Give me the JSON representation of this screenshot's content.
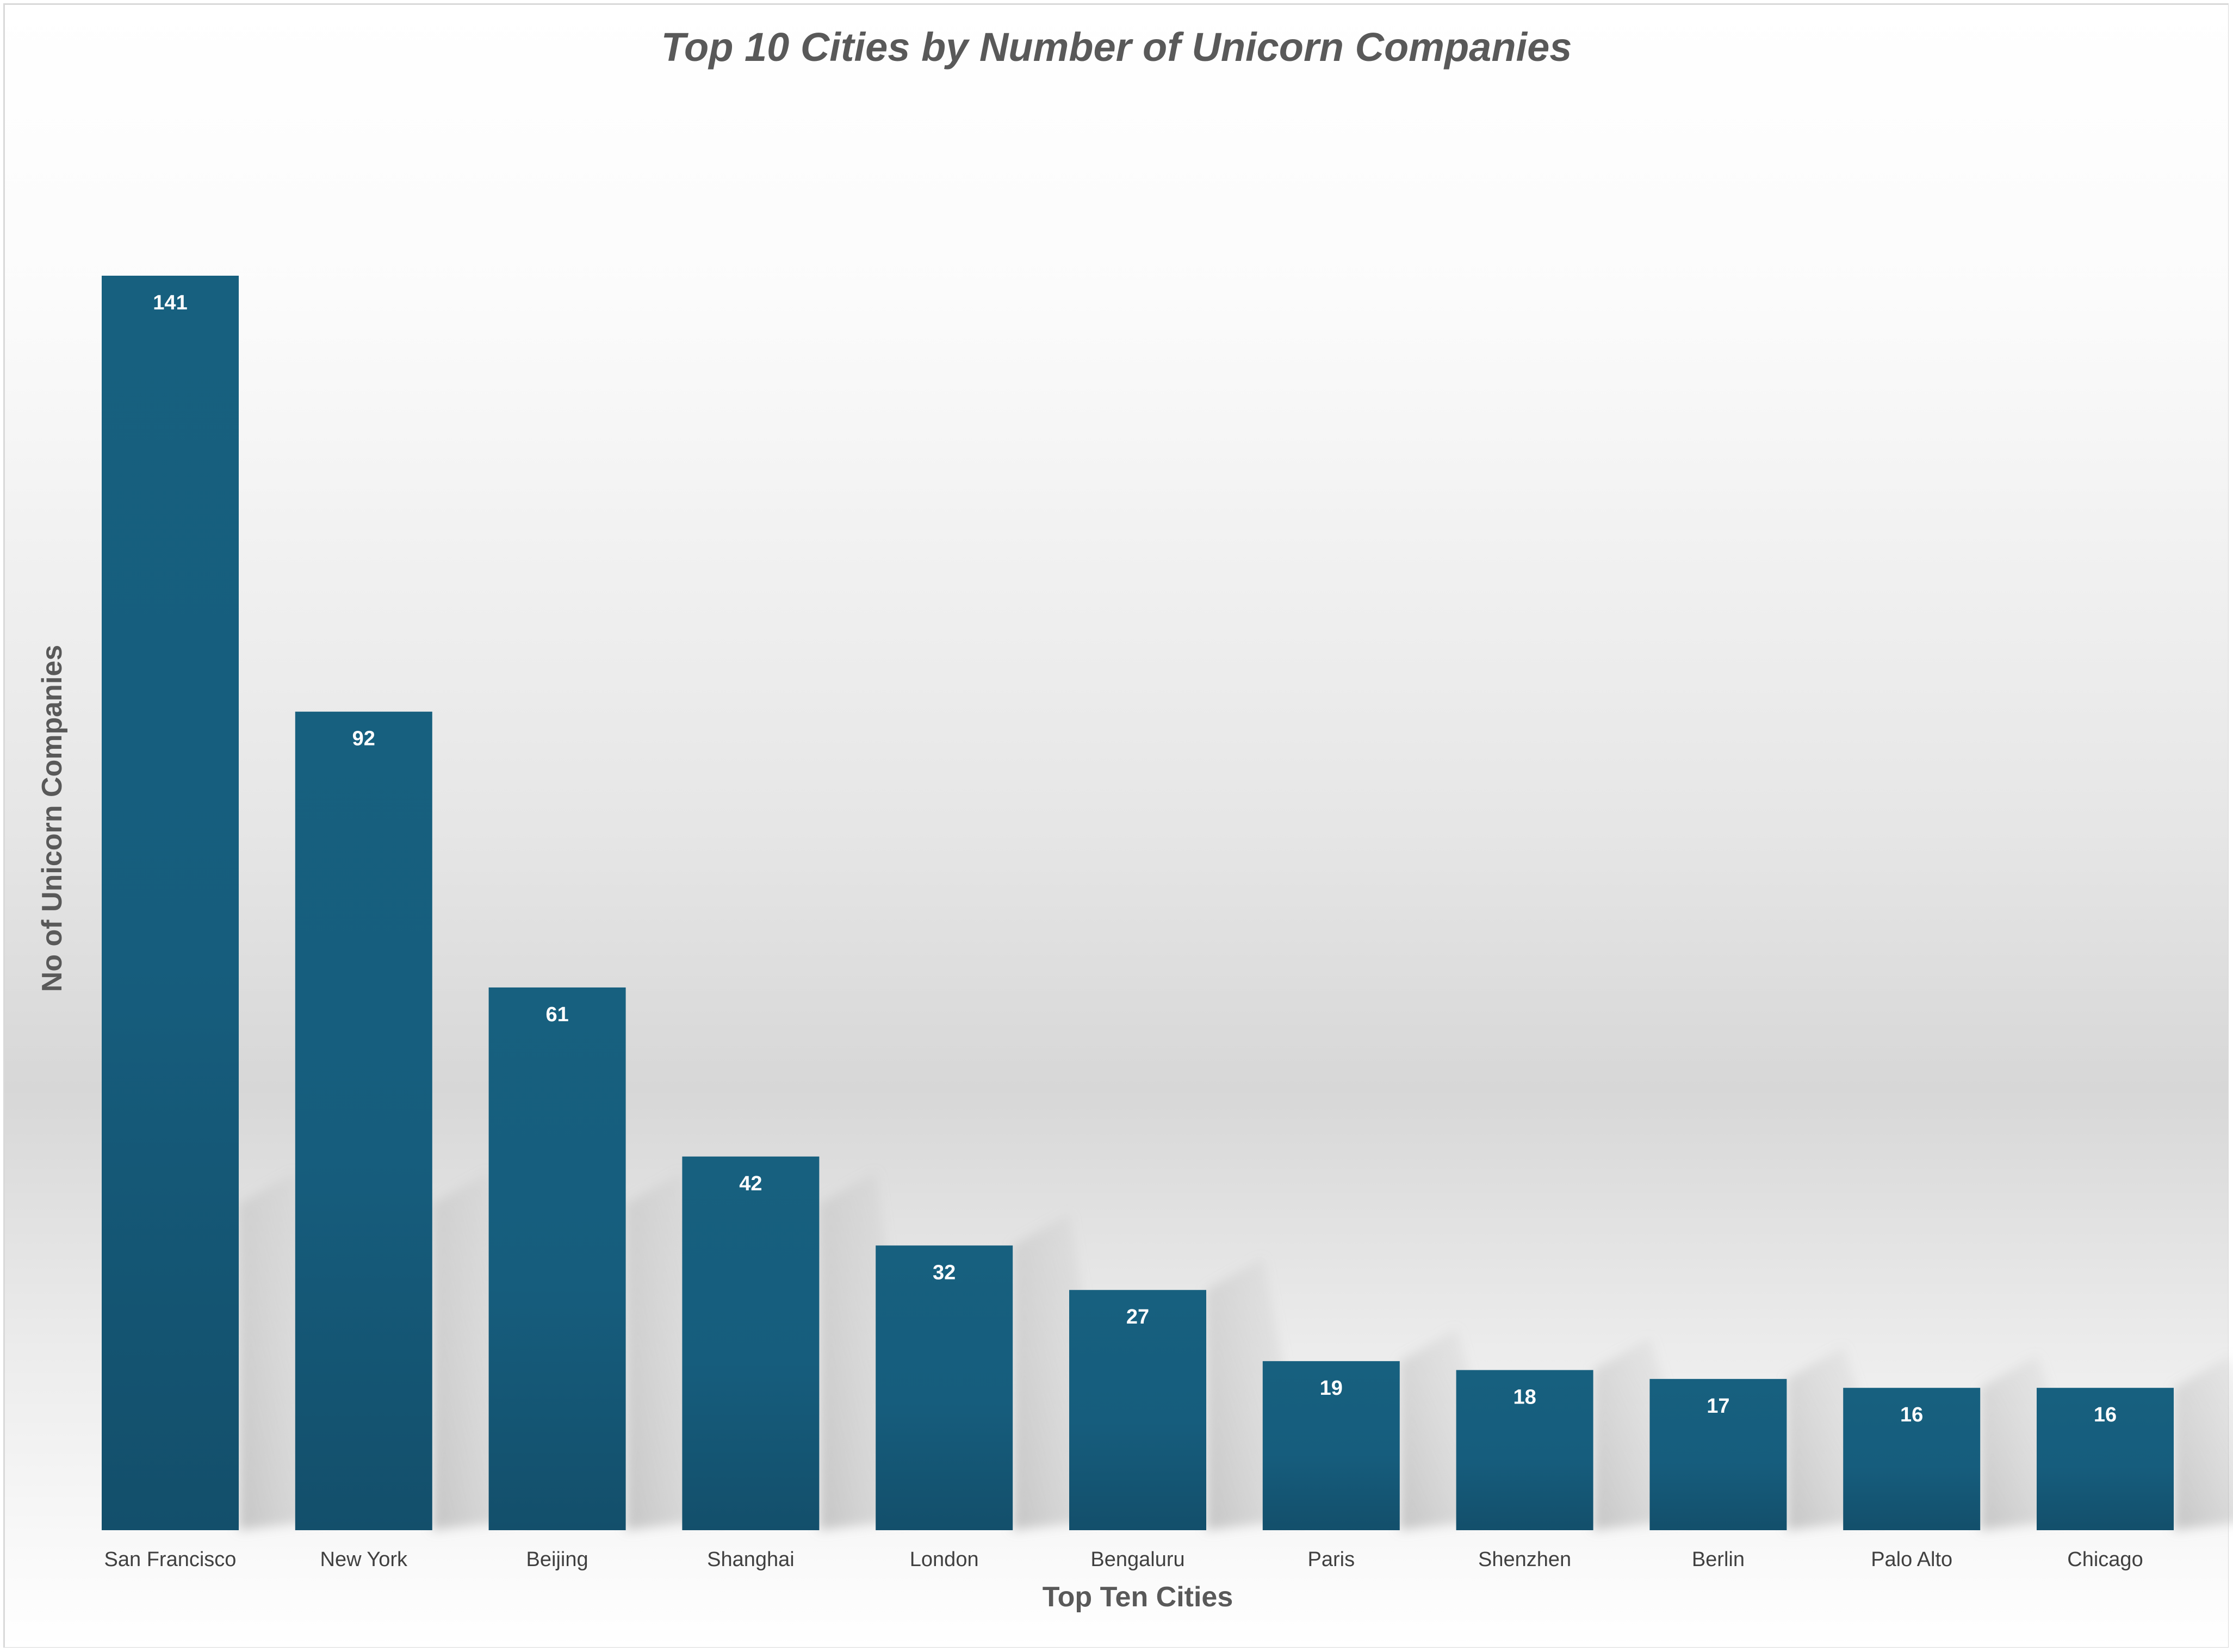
{
  "chart_data": {
    "type": "bar",
    "title": "Top 10 Cities by Number of Unicorn Companies",
    "xlabel": "Top Ten Cities",
    "ylabel": "No of Unicorn Companies",
    "categories": [
      "San Francisco",
      "New York",
      "Beijing",
      "Shanghai",
      "London",
      "Bengaluru",
      "Paris",
      "Shenzhen",
      "Berlin",
      "Palo Alto",
      "Chicago"
    ],
    "values": [
      141,
      92,
      61,
      42,
      32,
      27,
      19,
      18,
      17,
      16,
      16
    ],
    "data_labels": [
      "141",
      "92",
      "61",
      "42",
      "32",
      "27",
      "19",
      "18",
      "17",
      "16",
      "16"
    ],
    "ylim": [
      0,
      150
    ],
    "grid": false,
    "legend": "none",
    "bar_color": "#175f80"
  }
}
